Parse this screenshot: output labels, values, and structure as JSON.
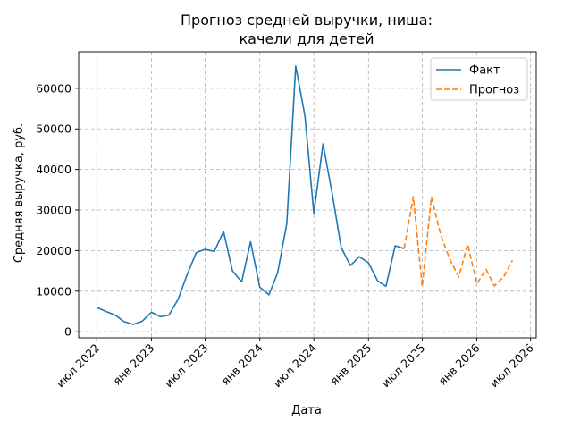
{
  "chart_data": {
    "type": "line",
    "title_lines": [
      "Прогноз средней выручки, ниша:",
      "качели для детей"
    ],
    "xlabel": "Дата",
    "ylabel": "Средняя выручка, руб.",
    "xlim": [
      "2022-05-01",
      "2026-07-20"
    ],
    "ylim": [
      -1500,
      69000
    ],
    "x_ticks": [
      {
        "date": "2022-07-01",
        "label": "июл 2022"
      },
      {
        "date": "2023-01-01",
        "label": "янв 2023"
      },
      {
        "date": "2023-07-01",
        "label": "июл 2023"
      },
      {
        "date": "2024-01-01",
        "label": "янв 2024"
      },
      {
        "date": "2024-07-01",
        "label": "июл 2024"
      },
      {
        "date": "2025-01-01",
        "label": "янв 2025"
      },
      {
        "date": "2025-07-01",
        "label": "июл 2025"
      },
      {
        "date": "2026-01-01",
        "label": "янв 2026"
      },
      {
        "date": "2026-07-01",
        "label": "июл 2026"
      }
    ],
    "y_ticks": [
      {
        "value": 0,
        "label": "0"
      },
      {
        "value": 10000,
        "label": "10000"
      },
      {
        "value": 20000,
        "label": "20000"
      },
      {
        "value": 30000,
        "label": "30000"
      },
      {
        "value": 40000,
        "label": "40000"
      },
      {
        "value": 50000,
        "label": "50000"
      },
      {
        "value": 60000,
        "label": "60000"
      }
    ],
    "grid": true,
    "legend_position": "top-right",
    "series": [
      {
        "name": "Факт",
        "color": "#1f77b4",
        "style": "solid",
        "points": [
          {
            "x": "2022-07-01",
            "y": 6000
          },
          {
            "x": "2022-08-01",
            "y": 5000
          },
          {
            "x": "2022-09-01",
            "y": 4100
          },
          {
            "x": "2022-10-01",
            "y": 2500
          },
          {
            "x": "2022-11-01",
            "y": 1800
          },
          {
            "x": "2022-12-01",
            "y": 2600
          },
          {
            "x": "2023-01-01",
            "y": 4800
          },
          {
            "x": "2023-02-01",
            "y": 3700
          },
          {
            "x": "2023-03-01",
            "y": 4100
          },
          {
            "x": "2023-04-01",
            "y": 8000
          },
          {
            "x": "2023-05-01",
            "y": 14000
          },
          {
            "x": "2023-06-01",
            "y": 19500
          },
          {
            "x": "2023-07-01",
            "y": 20300
          },
          {
            "x": "2023-08-01",
            "y": 19800
          },
          {
            "x": "2023-09-01",
            "y": 24700
          },
          {
            "x": "2023-10-01",
            "y": 15000
          },
          {
            "x": "2023-11-01",
            "y": 12300
          },
          {
            "x": "2023-12-01",
            "y": 22200
          },
          {
            "x": "2024-01-01",
            "y": 11000
          },
          {
            "x": "2024-02-01",
            "y": 9100
          },
          {
            "x": "2024-03-01",
            "y": 14500
          },
          {
            "x": "2024-04-01",
            "y": 26700
          },
          {
            "x": "2024-05-01",
            "y": 65500
          },
          {
            "x": "2024-06-01",
            "y": 53200
          },
          {
            "x": "2024-07-01",
            "y": 29200
          },
          {
            "x": "2024-08-01",
            "y": 46300
          },
          {
            "x": "2024-09-01",
            "y": 34000
          },
          {
            "x": "2024-10-01",
            "y": 20800
          },
          {
            "x": "2024-11-01",
            "y": 16300
          },
          {
            "x": "2024-12-01",
            "y": 18500
          },
          {
            "x": "2025-01-01",
            "y": 17000
          },
          {
            "x": "2025-02-01",
            "y": 12500
          },
          {
            "x": "2025-03-01",
            "y": 11200
          },
          {
            "x": "2025-04-01",
            "y": 21200
          },
          {
            "x": "2025-05-01",
            "y": 20500
          }
        ]
      },
      {
        "name": "Прогноз",
        "color": "#ff7f0e",
        "style": "dashed",
        "points": [
          {
            "x": "2025-05-01",
            "y": 20500
          },
          {
            "x": "2025-06-01",
            "y": 33300
          },
          {
            "x": "2025-07-01",
            "y": 11100
          },
          {
            "x": "2025-08-01",
            "y": 33200
          },
          {
            "x": "2025-09-01",
            "y": 24000
          },
          {
            "x": "2025-10-01",
            "y": 18000
          },
          {
            "x": "2025-11-01",
            "y": 13500
          },
          {
            "x": "2025-12-01",
            "y": 21600
          },
          {
            "x": "2026-01-01",
            "y": 11800
          },
          {
            "x": "2026-02-01",
            "y": 15400
          },
          {
            "x": "2026-03-01",
            "y": 11300
          },
          {
            "x": "2026-04-01",
            "y": 13500
          },
          {
            "x": "2026-05-01",
            "y": 17600
          }
        ]
      }
    ]
  }
}
